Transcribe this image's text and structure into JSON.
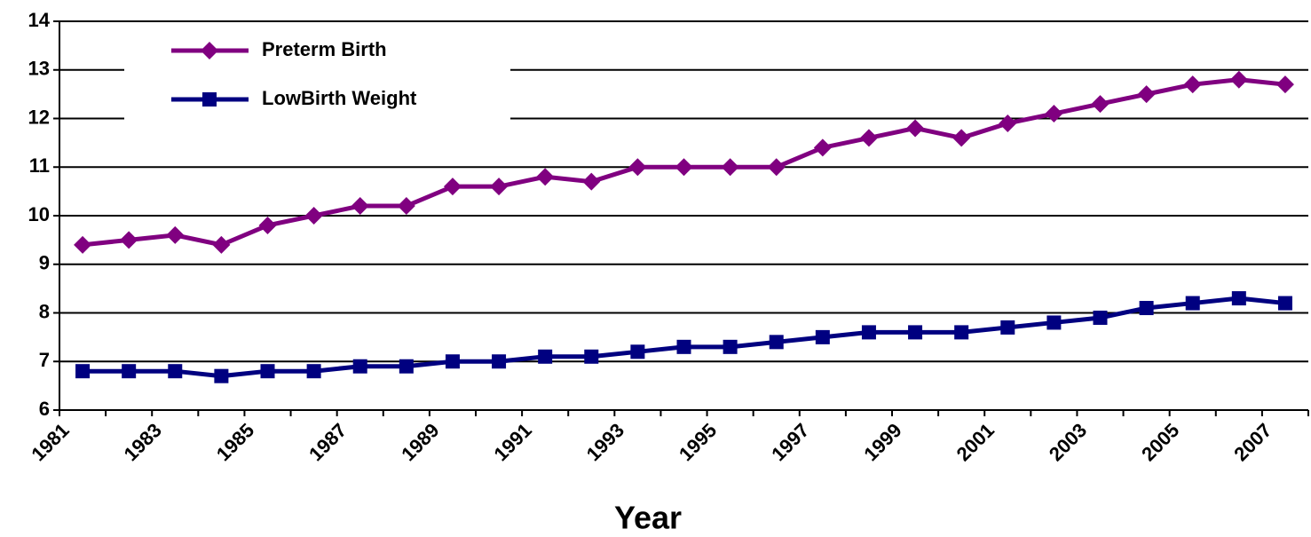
{
  "chart_data": {
    "type": "line",
    "x_label": "Year",
    "categories": [
      "1981",
      null,
      "1983",
      null,
      "1985",
      null,
      "1987",
      null,
      "1989",
      null,
      "1991",
      null,
      "1993",
      null,
      "1995",
      null,
      "1997",
      null,
      "1999",
      null,
      "2001",
      null,
      "2003",
      null,
      "2005",
      null,
      "2007"
    ],
    "series": [
      {
        "name": "Preterm Birth",
        "color": "#800080",
        "marker": "diamond",
        "values": [
          9.4,
          9.5,
          9.6,
          9.4,
          9.8,
          10.0,
          10.2,
          10.2,
          10.6,
          10.6,
          10.8,
          10.7,
          11.0,
          11.0,
          11.0,
          11.0,
          11.4,
          11.6,
          11.8,
          11.6,
          11.9,
          12.1,
          12.3,
          12.5,
          12.7,
          12.8,
          12.7
        ]
      },
      {
        "name": "LowBirth Weight",
        "color": "#000080",
        "marker": "square",
        "values": [
          6.8,
          6.8,
          6.8,
          6.7,
          6.8,
          6.8,
          6.9,
          6.9,
          7.0,
          7.0,
          7.1,
          7.1,
          7.2,
          7.3,
          7.3,
          7.4,
          7.5,
          7.6,
          7.6,
          7.6,
          7.7,
          7.8,
          7.9,
          8.1,
          8.2,
          8.3,
          8.2
        ]
      }
    ],
    "ylim": [
      6,
      14
    ],
    "yticks": [
      6,
      7,
      8,
      9,
      10,
      11,
      12,
      13,
      14
    ],
    "grid": true,
    "legend": "upper-left"
  }
}
